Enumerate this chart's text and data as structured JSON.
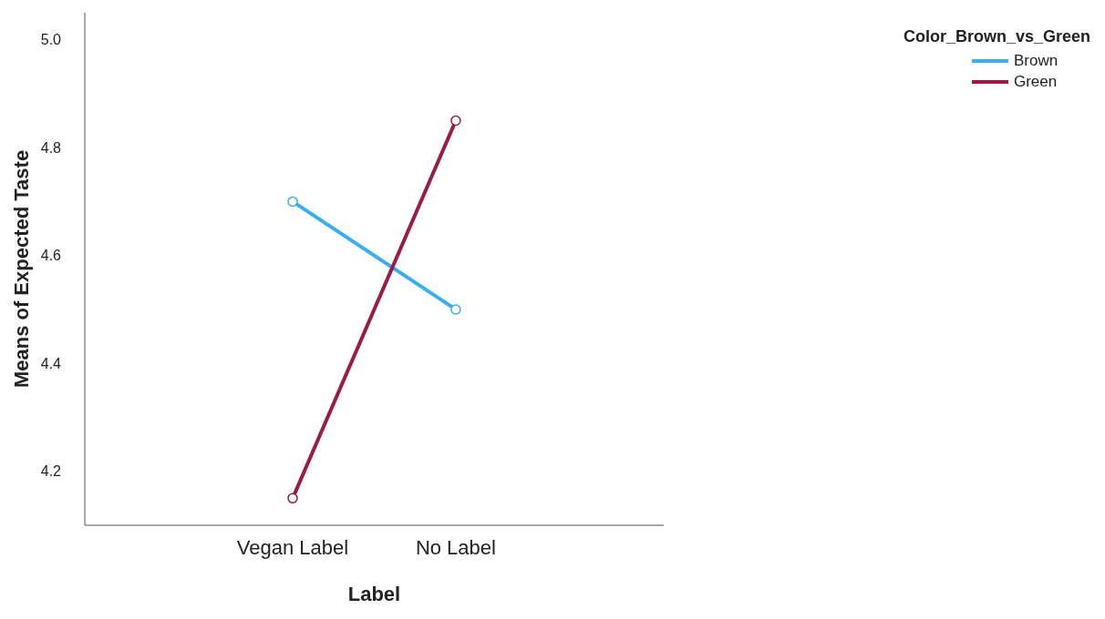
{
  "chart_data": {
    "type": "line",
    "xlabel": "Label",
    "ylabel": "Means of Expected Taste",
    "legend_title": "Color_Brown_vs_Green",
    "categories": [
      "Vegan Label",
      "No Label"
    ],
    "series": [
      {
        "name": "Brown",
        "color": "#3aaef0",
        "values": [
          4.7,
          4.5
        ]
      },
      {
        "name": "Green",
        "color": "#9b1a4a",
        "values": [
          4.15,
          4.85
        ]
      }
    ],
    "ylim": [
      4.1,
      5.05
    ],
    "yticks": [
      {
        "value": 4.2,
        "label": "4.2"
      },
      {
        "value": 4.4,
        "label": "4.4"
      },
      {
        "value": 4.6,
        "label": "4.6"
      },
      {
        "value": 4.8,
        "label": "4.8"
      },
      {
        "value": 5.0,
        "label": "5.0"
      }
    ],
    "grid": false,
    "legend": "top right",
    "marker": "circle",
    "line_style": "solid"
  }
}
